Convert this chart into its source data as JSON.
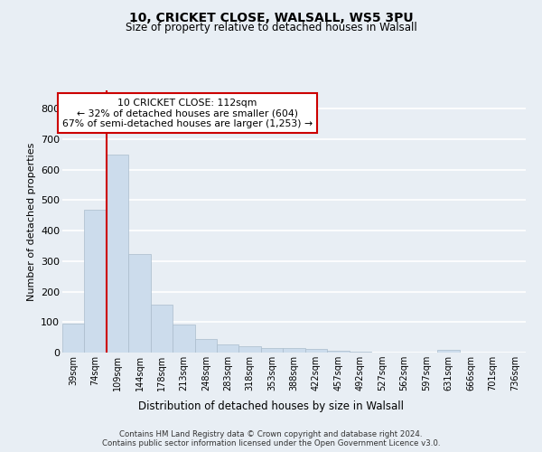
{
  "title1": "10, CRICKET CLOSE, WALSALL, WS5 3PU",
  "title2": "Size of property relative to detached houses in Walsall",
  "xlabel": "Distribution of detached houses by size in Walsall",
  "ylabel": "Number of detached properties",
  "categories": [
    "39sqm",
    "74sqm",
    "109sqm",
    "144sqm",
    "178sqm",
    "213sqm",
    "248sqm",
    "283sqm",
    "318sqm",
    "353sqm",
    "388sqm",
    "422sqm",
    "457sqm",
    "492sqm",
    "527sqm",
    "562sqm",
    "597sqm",
    "631sqm",
    "666sqm",
    "701sqm",
    "736sqm"
  ],
  "values": [
    95,
    470,
    648,
    323,
    158,
    93,
    45,
    27,
    22,
    16,
    15,
    13,
    7,
    2,
    0,
    0,
    0,
    10,
    0,
    0,
    0
  ],
  "bar_color": "#ccdcec",
  "bar_edgecolor": "#aabccc",
  "vline_color": "#cc0000",
  "vline_bar_index": 2,
  "annotation_text": "10 CRICKET CLOSE: 112sqm\n← 32% of detached houses are smaller (604)\n67% of semi-detached houses are larger (1,253) →",
  "annotation_box_color": "#ffffff",
  "annotation_box_edgecolor": "#cc0000",
  "ylim": [
    0,
    860
  ],
  "yticks": [
    0,
    100,
    200,
    300,
    400,
    500,
    600,
    700,
    800
  ],
  "background_color": "#e8eef4",
  "plot_background_color": "#e8eef4",
  "grid_color": "#ffffff",
  "footer": "Contains HM Land Registry data © Crown copyright and database right 2024.\nContains public sector information licensed under the Open Government Licence v3.0."
}
